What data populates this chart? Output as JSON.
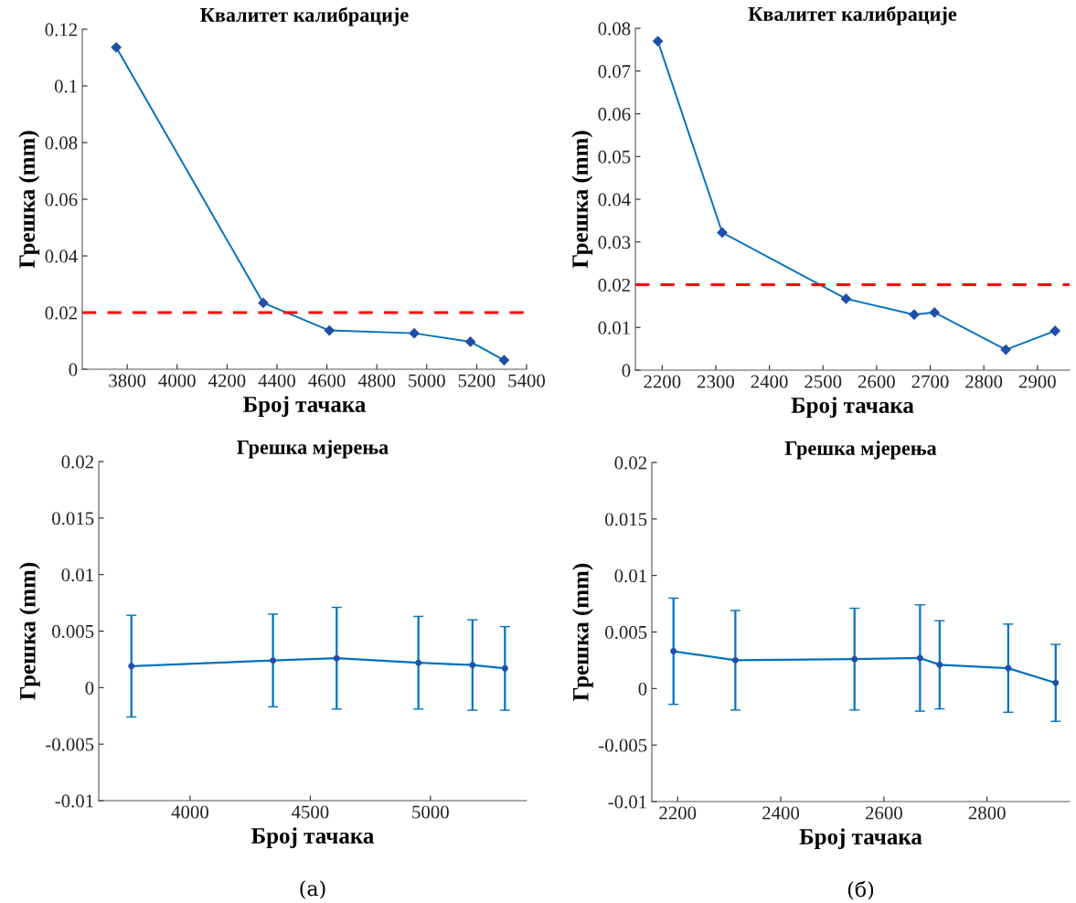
{
  "chart_data": [
    {
      "type": "line",
      "title": "Квалитет калибрације",
      "xlabel": "Број тачака",
      "ylabel": "Грешка (mm)",
      "marker": "diamond",
      "xlim": [
        3620,
        5400
      ],
      "xticks": [
        3800,
        4000,
        4200,
        4400,
        4600,
        4800,
        5000,
        5200,
        5400
      ],
      "ylim": [
        0,
        0.12
      ],
      "yticks": [
        0,
        0.02,
        0.04,
        0.06,
        0.08,
        0.1,
        0.12
      ],
      "x": [
        3756,
        4345,
        4610,
        4950,
        5175,
        5310
      ],
      "series": [
        {
          "color": "#0072bd",
          "values": [
            0.1136,
            0.0234,
            0.0137,
            0.0127,
            0.0097,
            0.0032
          ]
        }
      ],
      "ref_lines": [
        {
          "axis": "y",
          "value": 0.02,
          "color": "#ff0000",
          "line_style": "dashed"
        }
      ]
    },
    {
      "type": "line",
      "title": "Квалитет калибрације",
      "xlabel": "Број тачака",
      "ylabel": "Грешка (mm)",
      "marker": "diamond",
      "xlim": [
        2150,
        2960
      ],
      "xticks": [
        2200,
        2300,
        2400,
        2500,
        2600,
        2700,
        2800,
        2900
      ],
      "ylim": [
        0,
        0.08
      ],
      "yticks": [
        0,
        0.01,
        0.02,
        0.03,
        0.04,
        0.05,
        0.06,
        0.07,
        0.08
      ],
      "x": [
        2192,
        2312,
        2543,
        2670,
        2708,
        2841,
        2933
      ],
      "series": [
        {
          "color": "#0072bd",
          "values": [
            0.077,
            0.0322,
            0.0167,
            0.013,
            0.0135,
            0.0048,
            0.0092
          ]
        }
      ],
      "ref_lines": [
        {
          "axis": "y",
          "value": 0.02,
          "color": "#ff0000",
          "line_style": "dashed"
        }
      ]
    },
    {
      "type": "line",
      "title": "Грешка мјерења",
      "xlabel": "Број тачака",
      "ylabel": "Грешка (mm)",
      "marker": "circle",
      "xlim": [
        3620,
        5400
      ],
      "xticks": [
        4000,
        4500,
        5000
      ],
      "ylim": [
        -0.01,
        0.02
      ],
      "yticks": [
        -0.01,
        -0.005,
        0,
        0.005,
        0.01,
        0.015,
        0.02
      ],
      "x": [
        3756,
        4345,
        4610,
        4950,
        5175,
        5310
      ],
      "series": [
        {
          "color": "#0072bd",
          "values": [
            0.0019,
            0.0024,
            0.0026,
            0.0022,
            0.002,
            0.0017
          ],
          "errors": [
            0.0045,
            0.0041,
            0.0045,
            0.0041,
            0.004,
            0.0037
          ]
        }
      ],
      "annotations": [
        "(a)"
      ]
    },
    {
      "type": "line",
      "title": "Грешка мјерења",
      "xlabel": "Број тачака",
      "ylabel": "Грешка (mm)",
      "marker": "circle",
      "xlim": [
        2150,
        2960
      ],
      "xticks": [
        2200,
        2400,
        2600,
        2800
      ],
      "ylim": [
        -0.01,
        0.02
      ],
      "yticks": [
        -0.01,
        -0.005,
        0,
        0.005,
        0.01,
        0.015,
        0.02
      ],
      "x": [
        2192,
        2312,
        2543,
        2670,
        2708,
        2841,
        2933
      ],
      "series": [
        {
          "color": "#0072bd",
          "values": [
            0.0033,
            0.0025,
            0.0026,
            0.0027,
            0.0021,
            0.0018,
            0.0005
          ],
          "errors": [
            0.0047,
            0.0044,
            0.0045,
            0.0047,
            0.0039,
            0.0039,
            0.0034
          ]
        }
      ],
      "annotations": [
        "(б)"
      ]
    }
  ]
}
